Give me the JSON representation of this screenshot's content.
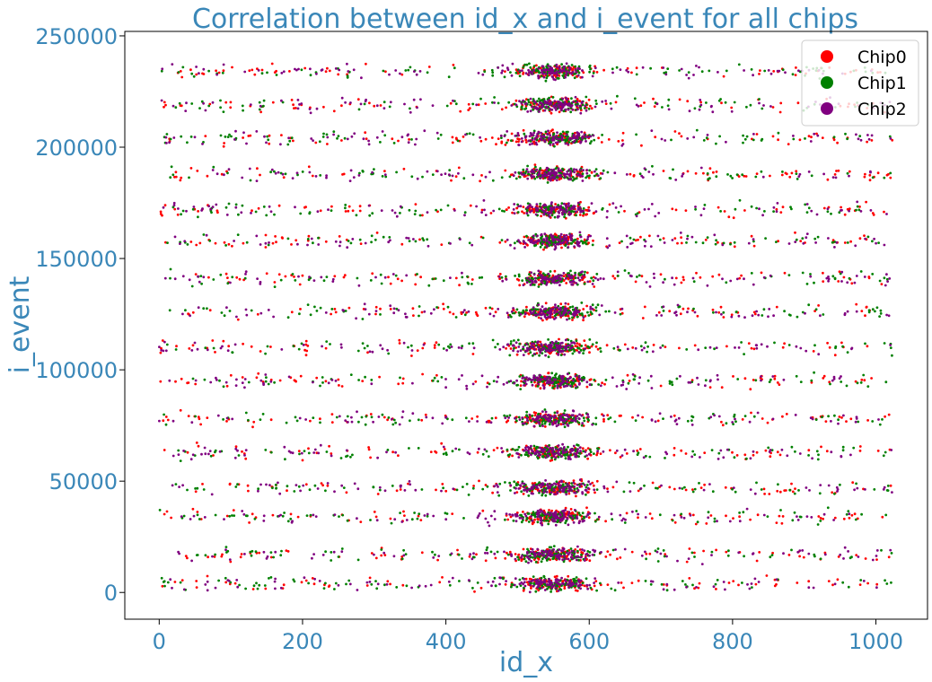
{
  "chart_data": {
    "type": "scatter",
    "title": "Correlation between id_x and i_event for all chips",
    "xlabel": "id_x",
    "ylabel": "i_event",
    "xlim": [
      -48,
      1072
    ],
    "ylim": [
      -12000,
      252000
    ],
    "xticks": [
      0,
      200,
      400,
      600,
      800,
      1000
    ],
    "yticks": [
      0,
      50000,
      100000,
      150000,
      200000,
      250000
    ],
    "grid": false,
    "legend_position": "top-right",
    "x_range": [
      0,
      1023
    ],
    "i_event_range": [
      0,
      240000
    ],
    "dense_x_band": [
      480,
      620
    ],
    "series": [
      {
        "name": "Chip0",
        "color": "#ff0000"
      },
      {
        "name": "Chip1",
        "color": "#008000"
      },
      {
        "name": "Chip2",
        "color": "#800080"
      }
    ],
    "event_bands": [
      4000,
      17000,
      34000,
      47000,
      63000,
      78000,
      95000,
      110000,
      126000,
      141000,
      158000,
      172000,
      188000,
      204000,
      219000,
      234000
    ]
  }
}
